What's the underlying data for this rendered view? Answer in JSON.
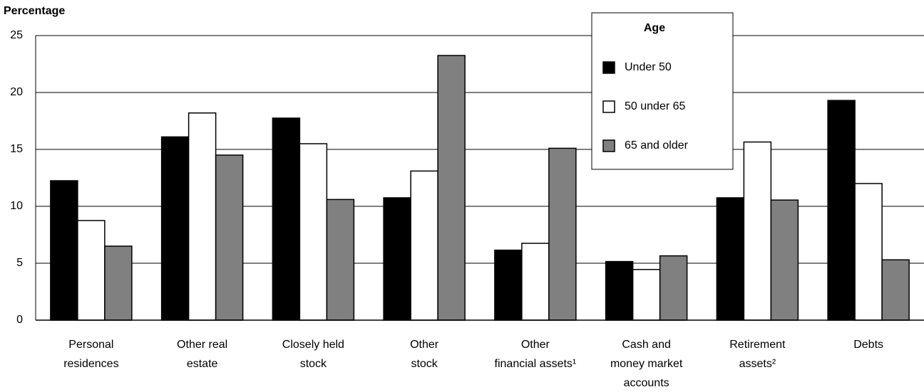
{
  "chart_data": {
    "type": "bar",
    "y_label": "Percentage",
    "categories": [
      [
        "Personal",
        "residences"
      ],
      [
        "Other real",
        "estate"
      ],
      [
        "Closely held",
        "stock"
      ],
      [
        "Other",
        "stock"
      ],
      [
        "Other",
        "financial assets¹"
      ],
      [
        "Cash and",
        "money market",
        "accounts"
      ],
      [
        "Retirement",
        "assets²"
      ],
      [
        "Debts"
      ]
    ],
    "legend_title": "Age",
    "series": [
      {
        "name": "Under 50",
        "color": "#000000",
        "values": [
          12.25,
          16.1,
          17.75,
          10.75,
          6.15,
          5.15,
          10.75,
          19.3
        ]
      },
      {
        "name": "50 under 65",
        "color": "#ffffff",
        "values": [
          8.75,
          18.2,
          15.5,
          13.1,
          6.75,
          4.45,
          15.65,
          12.0
        ]
      },
      {
        "name": "65 and older",
        "color": "#808080",
        "values": [
          6.5,
          14.5,
          10.6,
          23.25,
          15.1,
          5.65,
          10.55,
          5.3
        ]
      }
    ],
    "ylim": [
      0,
      25
    ],
    "yticks": [
      0,
      5,
      10,
      15,
      20,
      25
    ],
    "grid": true
  }
}
